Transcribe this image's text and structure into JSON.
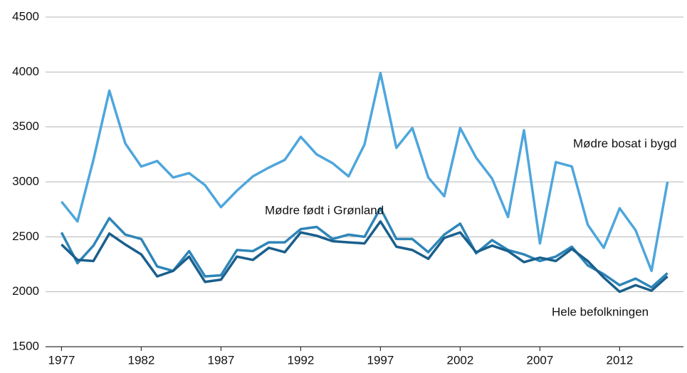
{
  "chart_data": {
    "type": "line",
    "x": [
      1977,
      1978,
      1979,
      1980,
      1981,
      1982,
      1983,
      1984,
      1985,
      1986,
      1987,
      1988,
      1989,
      1990,
      1991,
      1992,
      1993,
      1994,
      1995,
      1996,
      1997,
      1998,
      1999,
      2000,
      2001,
      2002,
      2003,
      2004,
      2005,
      2006,
      2007,
      2008,
      2009,
      2010,
      2011,
      2012,
      2013,
      2014,
      2015
    ],
    "series": [
      {
        "name": "Mødre bosat i bygd",
        "color": "#4ea6dc",
        "values": [
          2820,
          2640,
          3200,
          3830,
          3350,
          3140,
          3190,
          3040,
          3080,
          2970,
          2770,
          2920,
          3050,
          3130,
          3200,
          3410,
          3250,
          3170,
          3050,
          3340,
          3990,
          3310,
          3490,
          3040,
          2870,
          3490,
          3220,
          3030,
          2680,
          3470,
          2440,
          3180,
          3140,
          2610,
          2400,
          2760,
          2560,
          2190,
          3000
        ]
      },
      {
        "name": "Mødre født i Grønland",
        "color": "#2e85b8",
        "values": [
          2540,
          2260,
          2420,
          2670,
          2520,
          2480,
          2230,
          2190,
          2370,
          2140,
          2150,
          2380,
          2370,
          2450,
          2450,
          2570,
          2590,
          2480,
          2520,
          2500,
          2760,
          2480,
          2480,
          2360,
          2520,
          2620,
          2350,
          2470,
          2380,
          2340,
          2280,
          2320,
          2410,
          2240,
          2160,
          2060,
          2120,
          2040,
          2170
        ]
      },
      {
        "name": "Hele befolkningen",
        "color": "#1a5f8c",
        "values": [
          2430,
          2290,
          2280,
          2530,
          2430,
          2340,
          2140,
          2190,
          2320,
          2090,
          2110,
          2320,
          2290,
          2400,
          2360,
          2540,
          2510,
          2460,
          2450,
          2440,
          2640,
          2410,
          2380,
          2300,
          2490,
          2540,
          2360,
          2420,
          2370,
          2270,
          2310,
          2280,
          2390,
          2280,
          2130,
          2000,
          2060,
          2010,
          2140
        ]
      }
    ],
    "xlim": [
      1976,
      2016
    ],
    "xticks": [
      1977,
      1982,
      1987,
      1992,
      1997,
      2002,
      2007,
      2012
    ],
    "ylim": [
      1500,
      4500
    ],
    "yticks": [
      1500,
      2000,
      2500,
      3000,
      3500,
      4000,
      4500
    ],
    "grid": true
  }
}
